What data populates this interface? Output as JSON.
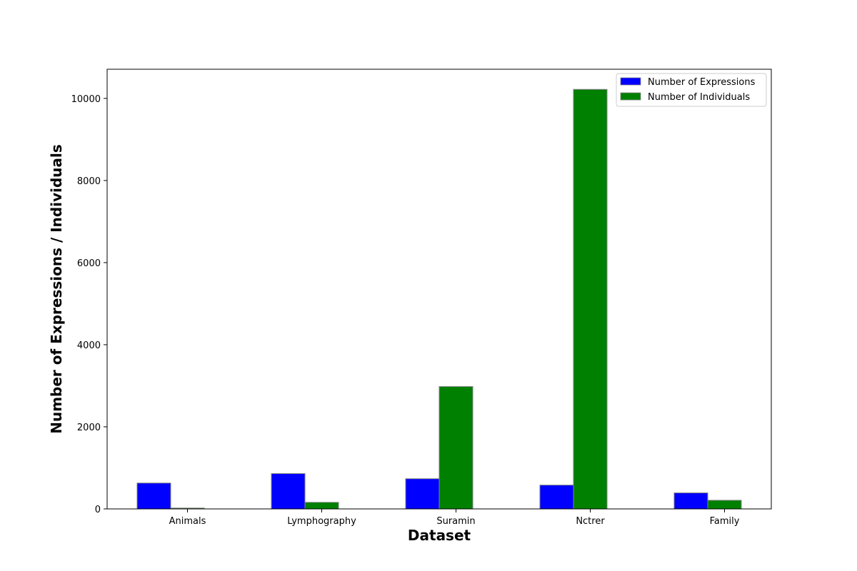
{
  "chart_data": {
    "type": "bar",
    "title": "",
    "xlabel": "Dataset",
    "ylabel": "Number of Expressions / Individuals",
    "categories": [
      "Animals",
      "Lymphography",
      "Suramin",
      "Nctrer",
      "Family"
    ],
    "series": [
      {
        "name": "Number of Expressions",
        "color": "#0000ff",
        "values": [
          630,
          860,
          735,
          580,
          390
        ]
      },
      {
        "name": "Number of Individuals",
        "color": "#008000",
        "values": [
          20,
          160,
          2980,
          10220,
          210
        ]
      }
    ],
    "ylim": [
      0,
      10711
    ],
    "yticks": [
      0,
      2000,
      4000,
      6000,
      8000,
      10000
    ],
    "grid": false,
    "legend_position": "top-right",
    "bar_edge_color": "#808080"
  }
}
